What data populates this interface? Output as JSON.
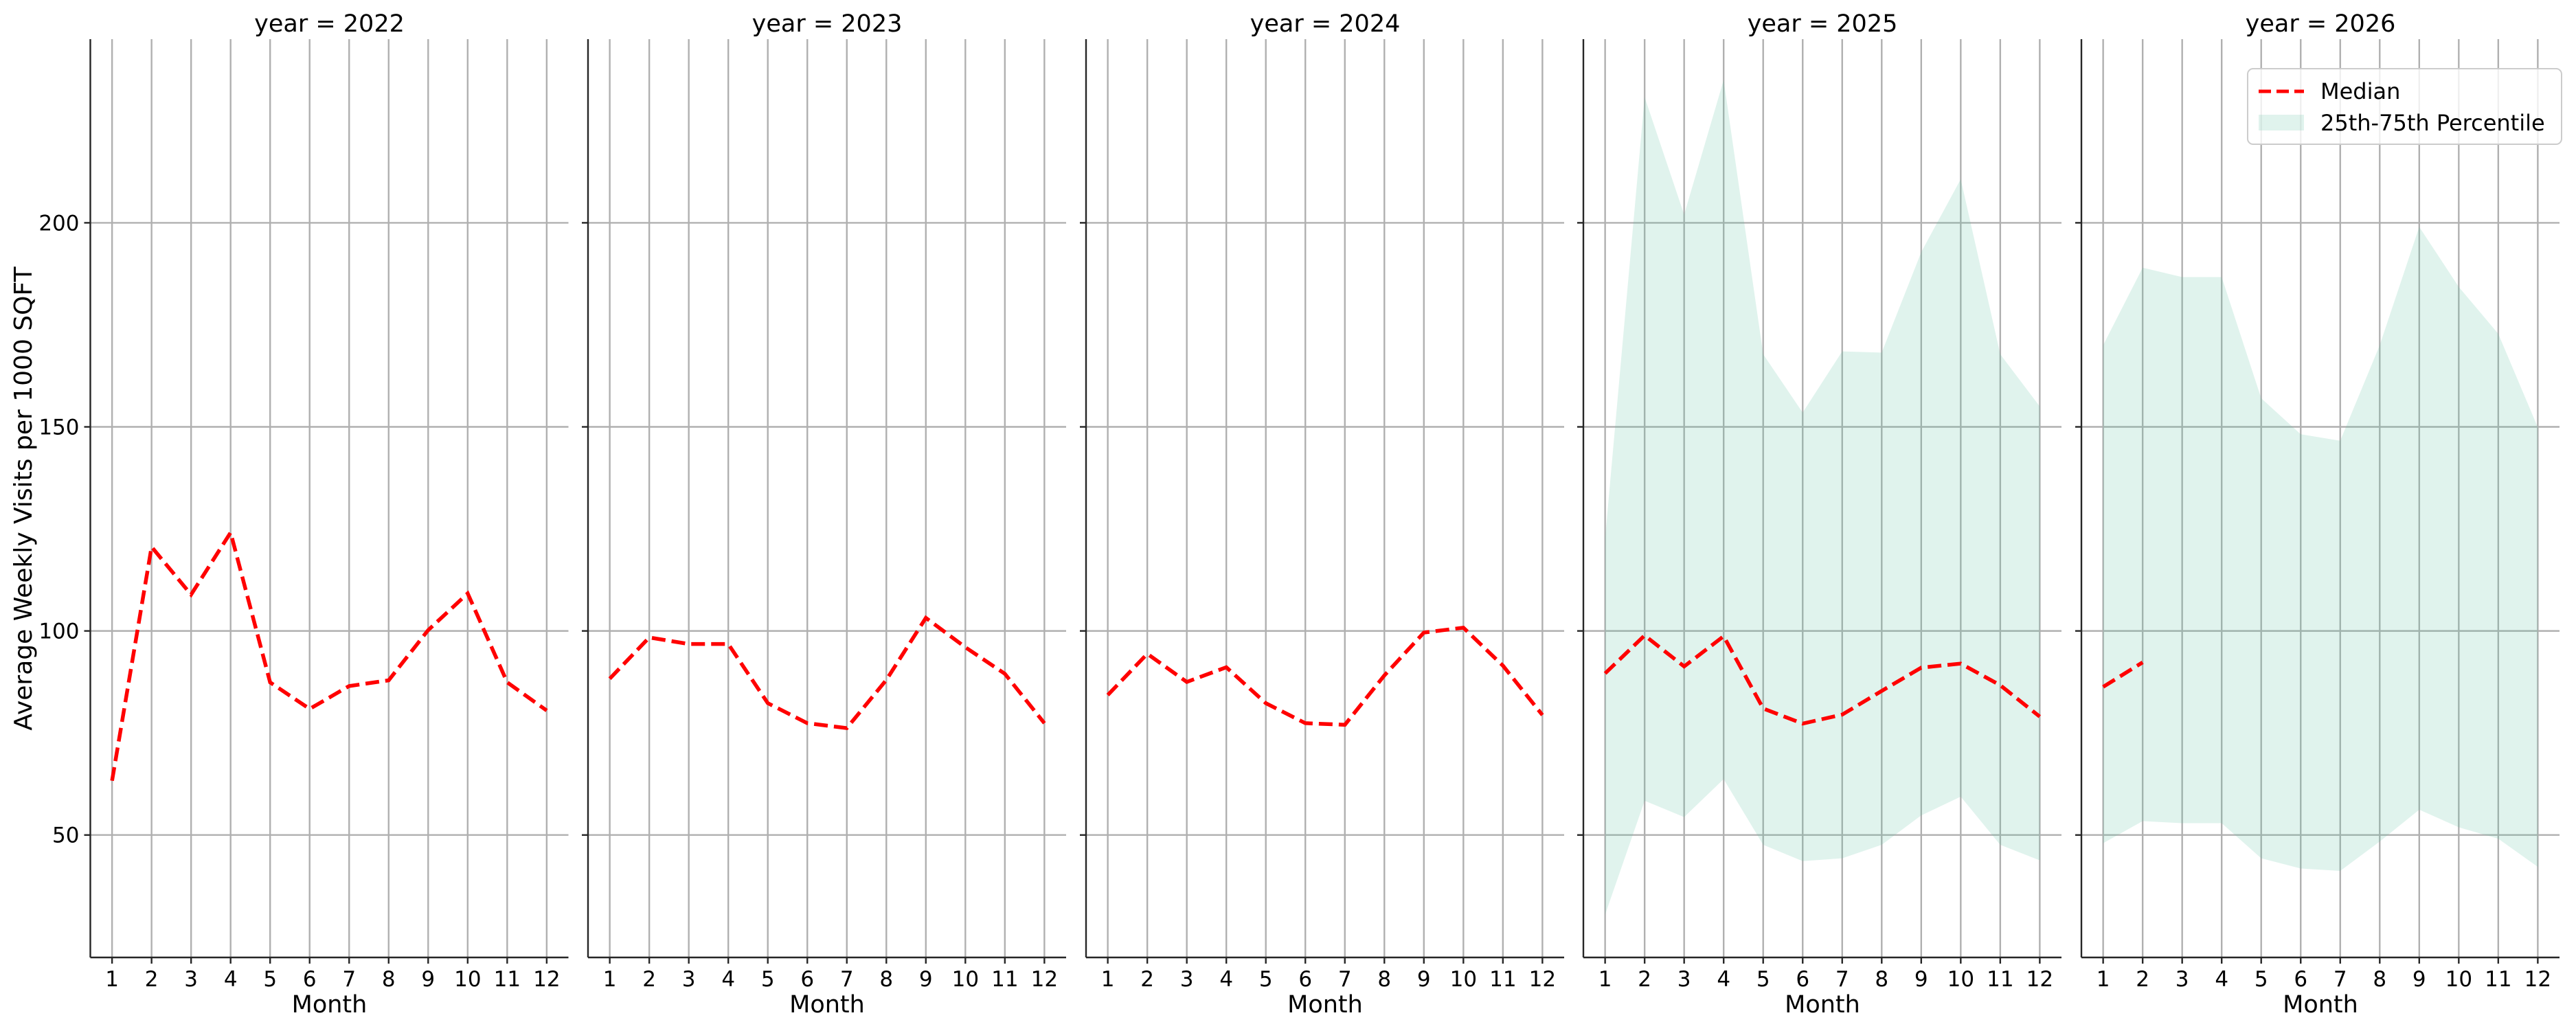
{
  "chart_data": {
    "type": "line",
    "ylabel": "Average Weekly Visits per 1000 SQFT",
    "xlabel": "Month",
    "ylim": [
      20,
      245
    ],
    "xlim": [
      0.45,
      12.55
    ],
    "yticks": [
      50,
      100,
      150,
      200
    ],
    "xticks": [
      1,
      2,
      3,
      4,
      5,
      6,
      7,
      8,
      9,
      10,
      11,
      12
    ],
    "grid": true,
    "legend": {
      "placement": "upper-right of last panel",
      "entries": [
        "Median",
        "25th-75th Percentile"
      ]
    },
    "colors": {
      "median": "#ff0000",
      "band": "#66c2a5",
      "grid": "#b0b0b0"
    },
    "panels": [
      {
        "title": "year = 2022",
        "median": [
          63.3,
          120.6,
          108.9,
          124.1,
          87.4,
          80.9,
          86.5,
          87.9,
          100.2,
          109.2,
          87.4,
          80.5
        ],
        "p25": null,
        "p75": null
      },
      {
        "title": "year = 2023",
        "median": [
          88.3,
          98.4,
          96.8,
          96.8,
          82.3,
          77.4,
          76.2,
          88.0,
          103.2,
          96.0,
          89.5,
          77.4
        ],
        "p25": null,
        "p75": null
      },
      {
        "title": "year = 2024",
        "median": [
          84.3,
          94.4,
          87.5,
          91.1,
          82.3,
          77.4,
          77.0,
          89.1,
          99.6,
          100.8,
          91.5,
          79.4
        ],
        "p25": null,
        "p75": null
      },
      {
        "title": "year = 2025",
        "median": [
          89.6,
          98.9,
          91.3,
          98.7,
          81.0,
          77.3,
          79.5,
          85.3,
          91.0,
          92.0,
          86.7,
          79.0
        ],
        "p25": [
          30.5,
          58.4,
          54.4,
          63.7,
          47.6,
          43.6,
          44.3,
          47.6,
          54.8,
          59.4,
          47.6,
          43.8
        ],
        "p75": [
          122.7,
          230.8,
          202.0,
          235.0,
          167.8,
          153.5,
          168.5,
          168.2,
          192.8,
          210.7,
          167.8,
          155.0
        ]
      },
      {
        "title": "year = 2026",
        "median": [
          86.3,
          92.3
        ],
        "p25": [
          48.0,
          53.4,
          52.9,
          52.9,
          44.3,
          41.8,
          41.2,
          48.4,
          56.2,
          51.9,
          49.1,
          42.2
        ],
        "p75": [
          170.0,
          189.0,
          186.7,
          186.7,
          157.0,
          148.2,
          146.6,
          170.0,
          199.0,
          184.3,
          172.8,
          149.9
        ]
      }
    ]
  }
}
